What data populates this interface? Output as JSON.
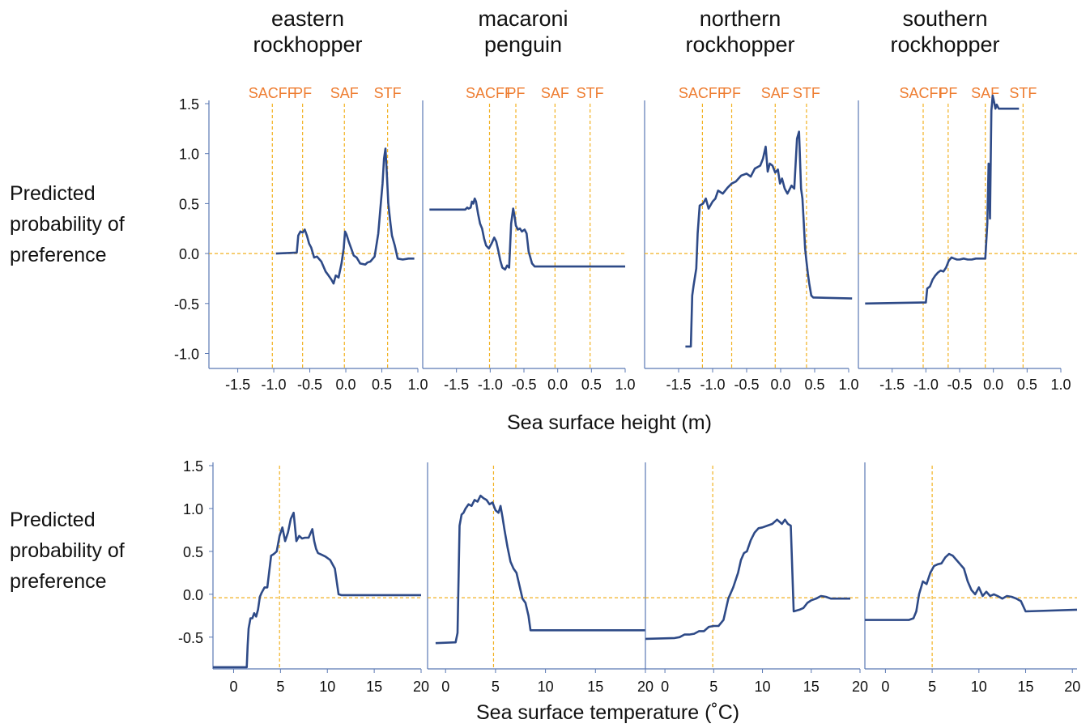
{
  "figure": {
    "y_axis_label_lines": [
      "Predicted",
      "probability of",
      "preference"
    ],
    "x_label_top": "Sea surface height (m)",
    "x_label_bottom": "Sea surface temperature (˚C)",
    "species": [
      [
        "eastern",
        "rockhopper"
      ],
      [
        "macaroni",
        "penguin"
      ],
      [
        "northern",
        "rockhopper"
      ],
      [
        "southern",
        "rockhopper"
      ]
    ],
    "front_labels": [
      "SACFF",
      "PF",
      "SAF",
      "STF"
    ]
  },
  "colors": {
    "line": "#2e4a87",
    "guide": "#f2b120",
    "front_text": "#ee7d31",
    "axis": "#5b79b4"
  },
  "chart_data": [
    {
      "type": "line",
      "panel": "eastern rockhopper - SSH",
      "xlabel": "Sea surface height (m)",
      "ylabel": "Predicted probability of preference",
      "xlim": [
        -1.9,
        1.0
      ],
      "ylim": [
        -1.15,
        1.5
      ],
      "xticks": [
        -1.5,
        -1.0,
        -0.5,
        0.0,
        0.5,
        1.0
      ],
      "xtick_labels": [
        "-1.5",
        "-1.0",
        "-0.5",
        "0.0",
        "0.5",
        "1.0"
      ],
      "yticks": [
        1.5,
        1.0,
        0.5,
        0.0,
        -0.5,
        -1.0
      ],
      "ytick_labels": [
        "1.5",
        "1.0",
        "0.5",
        "0.0",
        "-0.5",
        "-1.0"
      ],
      "vlines": [
        {
          "label": "SACFF",
          "x": -1.02
        },
        {
          "label": "PF",
          "x": -0.6
        },
        {
          "label": "SAF",
          "x": -0.02
        },
        {
          "label": "STF",
          "x": 0.58
        }
      ],
      "hline": 0.0,
      "x": [
        -0.97,
        -0.68,
        -0.66,
        -0.63,
        -0.6,
        -0.57,
        -0.54,
        -0.51,
        -0.48,
        -0.44,
        -0.4,
        -0.34,
        -0.28,
        -0.24,
        -0.2,
        -0.17,
        -0.14,
        -0.1,
        -0.06,
        -0.03,
        -0.01,
        0.01,
        0.04,
        0.08,
        0.11,
        0.15,
        0.2,
        0.27,
        0.3,
        0.34,
        0.4,
        0.45,
        0.48,
        0.51,
        0.53,
        0.55,
        0.57,
        0.59,
        0.62,
        0.64,
        0.68,
        0.72,
        0.79,
        0.87,
        0.95
      ],
      "y": [
        0.0,
        0.01,
        0.18,
        0.22,
        0.21,
        0.24,
        0.18,
        0.1,
        0.06,
        -0.04,
        -0.03,
        -0.08,
        -0.18,
        -0.22,
        -0.26,
        -0.3,
        -0.22,
        -0.24,
        -0.1,
        0.05,
        0.22,
        0.19,
        0.12,
        0.04,
        -0.02,
        -0.04,
        -0.1,
        -0.11,
        -0.09,
        -0.08,
        -0.03,
        0.2,
        0.45,
        0.7,
        0.95,
        1.05,
        0.8,
        0.5,
        0.3,
        0.18,
        0.08,
        -0.05,
        -0.06,
        -0.05,
        -0.05
      ]
    },
    {
      "type": "line",
      "panel": "macaroni penguin - SSH",
      "xlabel": "Sea surface height (m)",
      "ylabel": "Predicted probability of preference",
      "xlim": [
        -2.0,
        1.0
      ],
      "ylim": [
        -1.15,
        1.5
      ],
      "xticks": [
        -1.5,
        -1.0,
        -0.5,
        0.0,
        0.5,
        1.0
      ],
      "xtick_labels": [
        "-1.5",
        "-1.0",
        "-0.5",
        "0.0",
        "0.5",
        "1.0"
      ],
      "yticks": [],
      "ytick_labels": [],
      "vlines": [
        {
          "label": "SACFF",
          "x": -1.01
        },
        {
          "label": "PF",
          "x": -0.62
        },
        {
          "label": "SAF",
          "x": -0.04
        },
        {
          "label": "STF",
          "x": 0.48
        }
      ],
      "hline": 0.0,
      "x": [
        -1.9,
        -1.37,
        -1.34,
        -1.32,
        -1.29,
        -1.27,
        -1.25,
        -1.23,
        -1.21,
        -1.18,
        -1.15,
        -1.12,
        -1.09,
        -1.06,
        -1.02,
        -0.98,
        -0.94,
        -0.91,
        -0.88,
        -0.85,
        -0.82,
        -0.78,
        -0.75,
        -0.72,
        -0.69,
        -0.66,
        -0.64,
        -0.62,
        -0.59,
        -0.56,
        -0.53,
        -0.49,
        -0.46,
        -0.43,
        -0.38,
        -0.34,
        1.0
      ],
      "y": [
        0.44,
        0.44,
        0.46,
        0.45,
        0.46,
        0.52,
        0.5,
        0.55,
        0.52,
        0.4,
        0.3,
        0.25,
        0.15,
        0.08,
        0.05,
        0.1,
        0.16,
        0.12,
        0.03,
        -0.07,
        -0.14,
        -0.16,
        -0.12,
        -0.14,
        0.3,
        0.45,
        0.38,
        0.28,
        0.24,
        0.25,
        0.22,
        0.24,
        0.2,
        0.02,
        -0.1,
        -0.13,
        -0.13
      ]
    },
    {
      "type": "line",
      "panel": "northern rockhopper - SSH",
      "xlabel": "Sea surface height (m)",
      "ylabel": "Predicted probability of preference",
      "xlim": [
        -2.0,
        1.0
      ],
      "ylim": [
        -1.15,
        1.5
      ],
      "xticks": [
        -1.5,
        -1.0,
        -0.5,
        0.0,
        0.5,
        1.0
      ],
      "xtick_labels": [
        "-1.5",
        "-1.0",
        "-0.5",
        "0.0",
        "0.5",
        "1.0"
      ],
      "yticks": [],
      "ytick_labels": [],
      "vlines": [
        {
          "label": "SACFF",
          "x": -1.15
        },
        {
          "label": "PF",
          "x": -0.72
        },
        {
          "label": "SAF",
          "x": -0.08
        },
        {
          "label": "STF",
          "x": 0.38
        }
      ],
      "hline": 0.0,
      "x": [
        -1.4,
        -1.32,
        -1.3,
        -1.28,
        -1.24,
        -1.22,
        -1.19,
        -1.14,
        -1.1,
        -1.06,
        -1.0,
        -0.96,
        -0.92,
        -0.85,
        -0.78,
        -0.72,
        -0.66,
        -0.58,
        -0.5,
        -0.44,
        -0.38,
        -0.3,
        -0.26,
        -0.22,
        -0.19,
        -0.16,
        -0.12,
        -0.08,
        -0.04,
        -0.01,
        0.02,
        0.06,
        0.1,
        0.16,
        0.2,
        0.24,
        0.27,
        0.3,
        0.32,
        0.34,
        0.36,
        0.38,
        0.4,
        0.42,
        0.45,
        0.48,
        0.5,
        1.05
      ],
      "y": [
        -0.93,
        -0.93,
        -0.42,
        -0.32,
        -0.15,
        0.2,
        0.48,
        0.5,
        0.55,
        0.45,
        0.52,
        0.55,
        0.63,
        0.6,
        0.66,
        0.7,
        0.72,
        0.78,
        0.8,
        0.77,
        0.85,
        0.88,
        0.95,
        1.07,
        0.82,
        0.9,
        0.88,
        0.81,
        0.84,
        0.7,
        0.75,
        0.65,
        0.6,
        0.68,
        0.65,
        1.15,
        1.22,
        0.65,
        0.55,
        0.3,
        0.05,
        -0.08,
        -0.2,
        -0.3,
        -0.42,
        -0.44,
        -0.44,
        -0.45
      ]
    },
    {
      "type": "line",
      "panel": "southern rockhopper - SSH",
      "xlabel": "Sea surface height (m)",
      "ylabel": "Predicted probability of preference",
      "xlim": [
        -2.0,
        1.0
      ],
      "ylim": [
        -1.15,
        1.5
      ],
      "xticks": [
        -1.5,
        -1.0,
        -0.5,
        0.0,
        0.5,
        1.0
      ],
      "xtick_labels": [
        "-1.5",
        "-1.0",
        "-0.5",
        "0.0",
        "0.5",
        "1.0"
      ],
      "yticks": [],
      "ytick_labels": [],
      "vlines": [
        {
          "label": "SACFF",
          "x": -1.04
        },
        {
          "label": "PF",
          "x": -0.67
        },
        {
          "label": "SAF",
          "x": -0.12
        },
        {
          "label": "STF",
          "x": 0.44
        }
      ],
      "hline": 0.0,
      "x": [
        -1.9,
        -1.06,
        -1.0,
        -0.98,
        -0.94,
        -0.9,
        -0.86,
        -0.82,
        -0.78,
        -0.74,
        -0.7,
        -0.66,
        -0.62,
        -0.58,
        -0.54,
        -0.5,
        -0.44,
        -0.38,
        -0.32,
        -0.26,
        -0.2,
        -0.15,
        -0.12,
        -0.09,
        -0.07,
        -0.05,
        -0.03,
        -0.02,
        -0.01,
        0.01,
        0.03,
        0.05,
        0.08,
        0.38
      ],
      "y": [
        -0.5,
        -0.49,
        -0.49,
        -0.35,
        -0.33,
        -0.26,
        -0.22,
        -0.19,
        -0.17,
        -0.18,
        -0.14,
        -0.07,
        -0.04,
        -0.05,
        -0.06,
        -0.06,
        -0.05,
        -0.06,
        -0.06,
        -0.05,
        -0.05,
        -0.05,
        -0.05,
        0.3,
        0.9,
        0.35,
        1.43,
        1.5,
        1.58,
        1.52,
        1.45,
        1.49,
        1.45,
        1.45
      ]
    },
    {
      "type": "line",
      "panel": "eastern rockhopper - SST",
      "xlabel": "Sea surface temperature (˚C)",
      "ylabel": "Predicted probability of preference",
      "xlim": [
        -2.2,
        20.0
      ],
      "ylim": [
        -0.87,
        1.5
      ],
      "xticks": [
        0,
        5,
        10,
        15,
        20
      ],
      "xtick_labels": [
        "0",
        "5",
        "10",
        "15",
        "20"
      ],
      "yticks": [
        1.5,
        1.0,
        0.5,
        0.0,
        -0.5
      ],
      "ytick_labels": [
        "1.5",
        "1.0",
        "0.5",
        "0.0",
        "-0.5"
      ],
      "vlines": [
        {
          "label": "",
          "x": 4.9
        }
      ],
      "hline": -0.04,
      "x": [
        -2.2,
        1.4,
        1.5,
        1.6,
        1.8,
        2.0,
        2.2,
        2.4,
        2.6,
        2.8,
        3.0,
        3.3,
        3.6,
        4.0,
        4.3,
        4.6,
        4.9,
        5.2,
        5.5,
        5.8,
        6.1,
        6.4,
        6.7,
        7.0,
        7.3,
        7.6,
        8.0,
        8.4,
        8.6,
        8.8,
        9.0,
        9.4,
        9.8,
        10.3,
        10.8,
        11.0,
        11.2,
        11.5,
        20.0
      ],
      "y": [
        -0.85,
        -0.85,
        -0.6,
        -0.4,
        -0.28,
        -0.28,
        -0.22,
        -0.26,
        -0.18,
        -0.03,
        0.02,
        0.08,
        0.08,
        0.45,
        0.47,
        0.5,
        0.68,
        0.78,
        0.62,
        0.72,
        0.88,
        0.95,
        0.62,
        0.68,
        0.65,
        0.66,
        0.66,
        0.76,
        0.62,
        0.53,
        0.48,
        0.46,
        0.44,
        0.4,
        0.3,
        0.15,
        0.0,
        -0.01,
        -0.01
      ]
    },
    {
      "type": "line",
      "panel": "macaroni penguin - SST",
      "xlabel": "Sea surface temperature (˚C)",
      "ylabel": "Predicted probability of preference",
      "xlim": [
        -1.8,
        20.0
      ],
      "ylim": [
        -0.87,
        1.5
      ],
      "xticks": [
        0,
        5,
        10,
        15,
        20
      ],
      "xtick_labels": [
        "0",
        "5",
        "10",
        "15",
        "20"
      ],
      "yticks": [],
      "ytick_labels": [],
      "vlines": [
        {
          "label": "",
          "x": 4.8
        }
      ],
      "hline": -0.04,
      "x": [
        -1.0,
        1.0,
        1.2,
        1.4,
        1.6,
        1.8,
        2.0,
        2.3,
        2.6,
        2.9,
        3.2,
        3.5,
        3.8,
        4.1,
        4.4,
        4.7,
        5.0,
        5.3,
        5.5,
        5.7,
        5.9,
        6.2,
        6.5,
        6.8,
        7.1,
        7.4,
        7.7,
        8.0,
        8.3,
        8.5,
        8.7,
        20.0
      ],
      "y": [
        -0.57,
        -0.56,
        -0.45,
        0.8,
        0.93,
        0.95,
        1.0,
        1.05,
        1.03,
        1.1,
        1.08,
        1.15,
        1.12,
        1.1,
        1.05,
        1.07,
        0.98,
        0.95,
        1.03,
        0.9,
        0.75,
        0.55,
        0.38,
        0.3,
        0.25,
        0.1,
        -0.05,
        -0.1,
        -0.25,
        -0.42,
        -0.42,
        -0.42
      ]
    },
    {
      "type": "line",
      "panel": "northern rockhopper - SST",
      "xlabel": "Sea surface temperature (˚C)",
      "ylabel": "Predicted probability of preference",
      "xlim": [
        -2.0,
        20.0
      ],
      "ylim": [
        -0.87,
        1.5
      ],
      "xticks": [
        0,
        5,
        10,
        15,
        20
      ],
      "xtick_labels": [
        "0",
        "5",
        "10",
        "15",
        "20"
      ],
      "yticks": [],
      "ytick_labels": [],
      "vlines": [
        {
          "label": "",
          "x": 4.9
        }
      ],
      "hline": -0.04,
      "x": [
        -2.0,
        1.0,
        1.5,
        2.0,
        2.5,
        3.0,
        3.5,
        4.0,
        4.5,
        5.0,
        5.5,
        6.0,
        6.5,
        7.0,
        7.5,
        7.8,
        8.1,
        8.4,
        8.8,
        9.2,
        9.6,
        10.0,
        10.5,
        11.0,
        11.5,
        12.0,
        12.3,
        12.6,
        12.9,
        13.2,
        13.8,
        14.2,
        14.6,
        15.0,
        15.5,
        16.0,
        16.5,
        17.0,
        19.0
      ],
      "y": [
        -0.52,
        -0.51,
        -0.5,
        -0.47,
        -0.47,
        -0.46,
        -0.43,
        -0.43,
        -0.38,
        -0.37,
        -0.37,
        -0.3,
        -0.05,
        0.08,
        0.25,
        0.4,
        0.48,
        0.5,
        0.63,
        0.72,
        0.77,
        0.78,
        0.8,
        0.82,
        0.87,
        0.82,
        0.87,
        0.82,
        0.8,
        -0.2,
        -0.18,
        -0.16,
        -0.1,
        -0.07,
        -0.05,
        -0.02,
        -0.03,
        -0.05,
        -0.05
      ]
    },
    {
      "type": "line",
      "panel": "southern rockhopper - SST",
      "xlabel": "Sea surface temperature (˚C)",
      "ylabel": "Predicted probability of preference",
      "xlim": [
        -2.2,
        20.5
      ],
      "ylim": [
        -0.87,
        1.5
      ],
      "xticks": [
        0,
        5,
        10,
        15,
        20
      ],
      "xtick_labels": [
        "0",
        "5",
        "10",
        "15",
        "20"
      ],
      "yticks": [],
      "ytick_labels": [],
      "vlines": [
        {
          "label": "",
          "x": 5.0
        }
      ],
      "hline": -0.04,
      "x": [
        -2.2,
        2.5,
        3.0,
        3.3,
        3.6,
        4.0,
        4.4,
        4.8,
        5.2,
        5.6,
        6.0,
        6.4,
        6.8,
        7.2,
        7.6,
        8.0,
        8.4,
        8.8,
        9.2,
        9.6,
        10.0,
        10.4,
        10.8,
        11.2,
        11.6,
        12.0,
        12.5,
        13.0,
        13.5,
        14.0,
        14.5,
        15.0,
        20.5
      ],
      "y": [
        -0.3,
        -0.3,
        -0.28,
        -0.2,
        0.0,
        0.15,
        0.12,
        0.25,
        0.33,
        0.35,
        0.36,
        0.43,
        0.47,
        0.45,
        0.4,
        0.35,
        0.3,
        0.15,
        0.05,
        0.0,
        0.08,
        -0.02,
        0.03,
        -0.02,
        0.0,
        -0.02,
        -0.05,
        -0.02,
        -0.03,
        -0.05,
        -0.08,
        -0.2,
        -0.18
      ]
    }
  ]
}
